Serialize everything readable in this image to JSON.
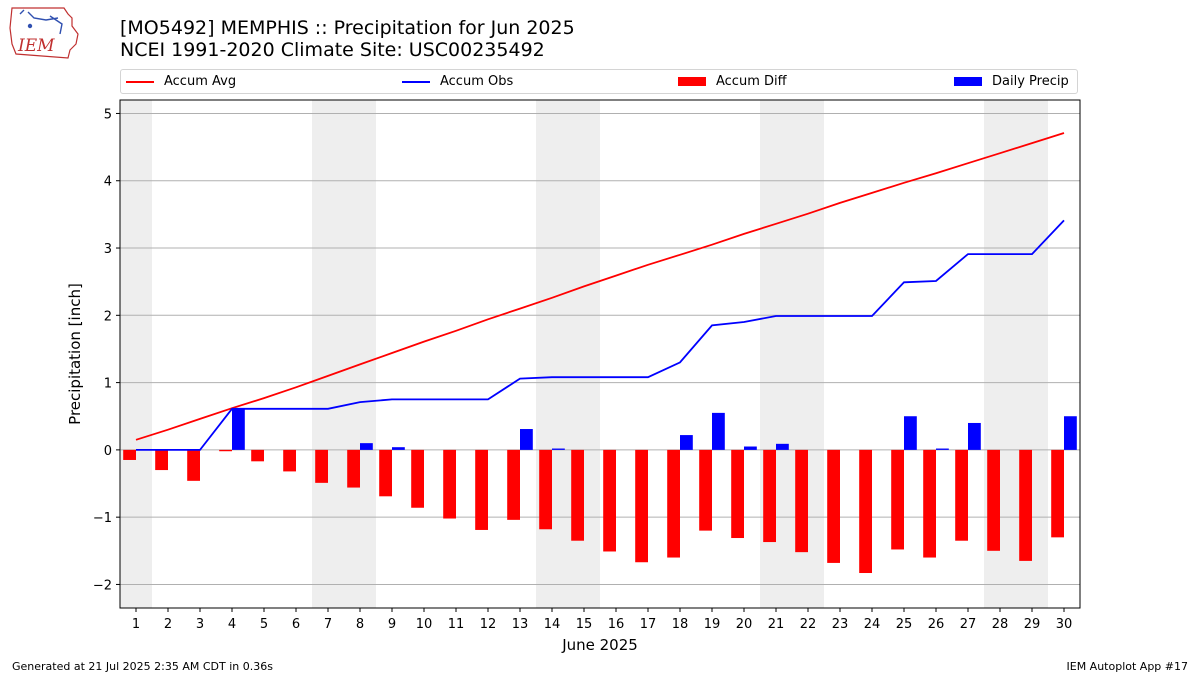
{
  "header": {
    "title_line1": "[MO5492] MEMPHIS :: Precipitation for Jun 2025",
    "title_line2": "NCEI 1991-2020 Climate Site: USC00235492",
    "logo_text": "IEM"
  },
  "footer": {
    "generated": "Generated at 21 Jul 2025 2:35 AM CDT in 0.36s",
    "app": "IEM Autoplot App #17"
  },
  "colors": {
    "avg": "#ff0000",
    "obs": "#0000ff",
    "diff": "#ff0000",
    "daily": "#0000ff",
    "weekend_band": "#eeeeee",
    "grid": "#b0b0b0"
  },
  "chart_data": {
    "type": "bar",
    "xlabel": "June 2025",
    "ylabel": "Precipitation [inch]",
    "ylim": [
      -2.35,
      5.2
    ],
    "yticks": [
      -2,
      -1,
      0,
      1,
      2,
      3,
      4,
      5
    ],
    "ytick_labels": [
      "−2",
      "−1",
      "0",
      "1",
      "2",
      "3",
      "4",
      "5"
    ],
    "grid": "horizontal",
    "legend_position": "top",
    "weekend_days": [
      1,
      7,
      8,
      14,
      15,
      21,
      22,
      28,
      29
    ],
    "x": [
      1,
      2,
      3,
      4,
      5,
      6,
      7,
      8,
      9,
      10,
      11,
      12,
      13,
      14,
      15,
      16,
      17,
      18,
      19,
      20,
      21,
      22,
      23,
      24,
      25,
      26,
      27,
      28,
      29,
      30
    ],
    "series": [
      {
        "name": "Accum Avg",
        "kind": "line",
        "values": [
          0.15,
          0.3,
          0.46,
          0.62,
          0.77,
          0.93,
          1.1,
          1.27,
          1.44,
          1.61,
          1.77,
          1.94,
          2.1,
          2.26,
          2.43,
          2.59,
          2.75,
          2.9,
          3.05,
          3.21,
          3.36,
          3.51,
          3.67,
          3.82,
          3.97,
          4.11,
          4.26,
          4.41,
          4.56,
          4.71
        ]
      },
      {
        "name": "Accum Obs",
        "kind": "line",
        "values": [
          0.0,
          0.0,
          0.0,
          0.61,
          0.61,
          0.61,
          0.61,
          0.71,
          0.75,
          0.75,
          0.75,
          0.75,
          1.06,
          1.08,
          1.08,
          1.08,
          1.08,
          1.3,
          1.85,
          1.9,
          1.99,
          1.99,
          1.99,
          1.99,
          2.49,
          2.51,
          2.91,
          2.91,
          2.91,
          3.41
        ]
      },
      {
        "name": "Accum Diff",
        "kind": "bar",
        "values": [
          -0.15,
          -0.3,
          -0.46,
          -0.02,
          -0.17,
          -0.32,
          -0.49,
          -0.56,
          -0.69,
          -0.86,
          -1.02,
          -1.19,
          -1.04,
          -1.18,
          -1.35,
          -1.51,
          -1.67,
          -1.6,
          -1.2,
          -1.31,
          -1.37,
          -1.52,
          -1.68,
          -1.83,
          -1.48,
          -1.6,
          -1.35,
          -1.5,
          -1.65,
          -1.3
        ]
      },
      {
        "name": "Daily Precip",
        "kind": "bar",
        "values": [
          0.0,
          0.0,
          0.0,
          0.61,
          0.0,
          0.0,
          0.0,
          0.1,
          0.04,
          0.0,
          0.0,
          0.0,
          0.31,
          0.02,
          0.0,
          0.0,
          0.0,
          0.22,
          0.55,
          0.05,
          0.09,
          0.0,
          0.0,
          0.0,
          0.5,
          0.02,
          0.4,
          0.0,
          0.0,
          0.5
        ]
      }
    ]
  }
}
